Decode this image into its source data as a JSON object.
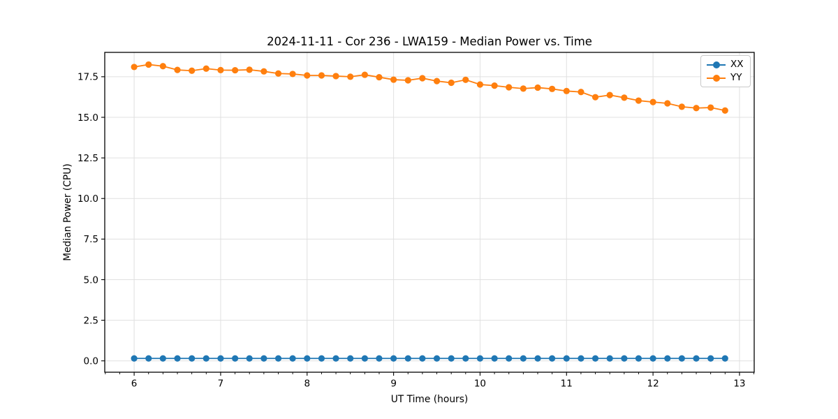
{
  "chart_data": {
    "type": "line",
    "title": "2024-11-11 - Cor 236 - LWA159 - Median Power vs. Time",
    "xlabel": "UT Time (hours)",
    "ylabel": "Median Power (CPU)",
    "xlim": [
      5.66,
      13.17
    ],
    "ylim": [
      -0.7,
      19.0
    ],
    "grid": true,
    "background_color": "#ffffff",
    "grid_color": "#e0e0e0",
    "spine_color": "#000000",
    "x_ticks": [
      {
        "v": 6,
        "label": "6"
      },
      {
        "v": 7,
        "label": "7"
      },
      {
        "v": 8,
        "label": "8"
      },
      {
        "v": 9,
        "label": "9"
      },
      {
        "v": 10,
        "label": "10"
      },
      {
        "v": 11,
        "label": "11"
      },
      {
        "v": 12,
        "label": "12"
      },
      {
        "v": 13,
        "label": "13"
      }
    ],
    "x_minor_per_hour": 6,
    "y_ticks": [
      {
        "v": 0,
        "label": "0.0"
      },
      {
        "v": 2.5,
        "label": "2.5"
      },
      {
        "v": 5,
        "label": "5.0"
      },
      {
        "v": 7.5,
        "label": "7.5"
      },
      {
        "v": 10,
        "label": "10.0"
      },
      {
        "v": 12.5,
        "label": "12.5"
      },
      {
        "v": 15,
        "label": "15.0"
      },
      {
        "v": 17.5,
        "label": "17.5"
      }
    ],
    "legend": {
      "position": "upper-right",
      "entries": [
        "XX",
        "YY"
      ]
    },
    "x": [
      6.0,
      6.167,
      6.333,
      6.5,
      6.667,
      6.833,
      7.0,
      7.167,
      7.333,
      7.5,
      7.667,
      7.833,
      8.0,
      8.167,
      8.333,
      8.5,
      8.667,
      8.833,
      9.0,
      9.167,
      9.333,
      9.5,
      9.667,
      9.833,
      10.0,
      10.167,
      10.333,
      10.5,
      10.667,
      10.833,
      11.0,
      11.167,
      11.333,
      11.5,
      11.667,
      11.833,
      12.0,
      12.167,
      12.333,
      12.5,
      12.667,
      12.833
    ],
    "series": [
      {
        "name": "XX",
        "color": "#1f77b4",
        "values": [
          0.15,
          0.15,
          0.15,
          0.15,
          0.15,
          0.15,
          0.15,
          0.15,
          0.15,
          0.15,
          0.15,
          0.15,
          0.15,
          0.15,
          0.15,
          0.15,
          0.15,
          0.15,
          0.15,
          0.15,
          0.15,
          0.15,
          0.15,
          0.15,
          0.15,
          0.15,
          0.15,
          0.15,
          0.15,
          0.15,
          0.15,
          0.15,
          0.15,
          0.15,
          0.15,
          0.15,
          0.15,
          0.15,
          0.15,
          0.15,
          0.15,
          0.15
        ]
      },
      {
        "name": "YY",
        "color": "#ff7f0e",
        "values": [
          18.1,
          18.25,
          18.15,
          17.92,
          17.87,
          18.0,
          17.91,
          17.9,
          17.93,
          17.83,
          17.7,
          17.67,
          17.58,
          17.58,
          17.54,
          17.5,
          17.62,
          17.47,
          17.32,
          17.28,
          17.41,
          17.23,
          17.13,
          17.31,
          17.02,
          16.95,
          16.85,
          16.77,
          16.83,
          16.75,
          16.62,
          16.56,
          16.24,
          16.37,
          16.21,
          16.03,
          15.94,
          15.86,
          15.65,
          15.57,
          15.6,
          15.42
        ]
      }
    ]
  }
}
